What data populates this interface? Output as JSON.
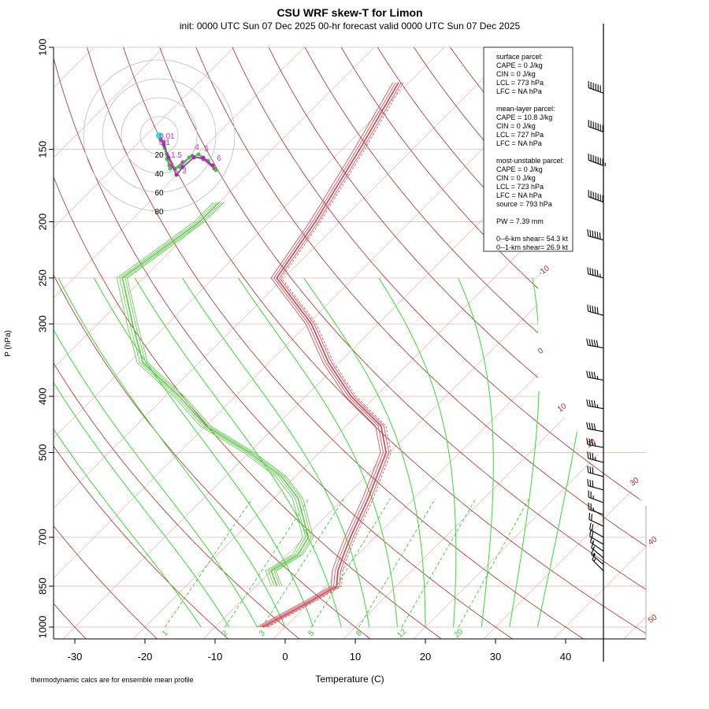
{
  "chart_data": {
    "type": "line",
    "title": "CSU WRF skew-T for Limon",
    "subtitle": "init: 0000 UTC Sun 07 Dec 2025     00-hr forecast valid 0000 UTC Sun 07 Dec 2025",
    "xlabel": "Temperature (C)",
    "ylabel": "P (hPa)",
    "footnote": "thermodynamic calcs are for ensemble mean profile",
    "x_ticks": [
      "-30",
      "-20",
      "-10",
      "0",
      "10",
      "20",
      "30",
      "40"
    ],
    "x_tick_values": [
      -30,
      -20,
      -10,
      0,
      10,
      20,
      30,
      40
    ],
    "y_ticks": [
      "100",
      "150",
      "200",
      "250",
      "300",
      "400",
      "500",
      "700",
      "850",
      "1000"
    ],
    "y_tick_values": [
      100,
      150,
      200,
      250,
      300,
      400,
      500,
      700,
      850,
      1000
    ],
    "xlim": [
      -33,
      52
    ],
    "ylim": [
      1000,
      100
    ],
    "dry_adiabat_labels": [
      "-10",
      "0",
      "10",
      "20",
      "30",
      "40",
      "50"
    ],
    "mixing_ratio_labels": [
      "1",
      "2",
      "3",
      "5",
      "8",
      "12",
      "20"
    ],
    "mixing_ratio_values": [
      1,
      2,
      3,
      5,
      8,
      12,
      20
    ],
    "series": [
      {
        "color": "#d0404c",
        "points": [
          [
            -3.2,
            1000
          ],
          [
            0.0,
            900
          ],
          [
            1.5,
            850
          ],
          [
            -0.5,
            800
          ],
          [
            -2.0,
            750
          ],
          [
            -3.5,
            700
          ],
          [
            -6.5,
            600
          ],
          [
            -10.5,
            500
          ],
          [
            -15.0,
            450
          ],
          [
            -23.5,
            400
          ],
          [
            -31.5,
            350
          ],
          [
            -39.5,
            300
          ],
          [
            -51.0,
            250
          ],
          [
            -53.5,
            200
          ],
          [
            -57.5,
            150
          ],
          [
            -61.5,
            115
          ]
        ]
      },
      {
        "color": "#5cc84a",
        "points": [
          [
            -7.0,
            850
          ],
          [
            -10.0,
            800
          ],
          [
            -8.5,
            750
          ],
          [
            -9.5,
            700
          ],
          [
            -16.5,
            600
          ],
          [
            -22.0,
            550
          ],
          [
            -30.0,
            500
          ],
          [
            -40.0,
            450
          ],
          [
            -48.0,
            400
          ],
          [
            -58.0,
            350
          ],
          [
            -65.0,
            300
          ],
          [
            -73.0,
            250
          ],
          [
            -70.0,
            200
          ],
          [
            -70.0,
            185
          ]
        ]
      }
    ],
    "hodograph": {
      "ring_labels": [
        "20",
        "40",
        "60",
        "80"
      ],
      "point_labels": [
        "0.01",
        "0.1",
        "1.5",
        "3",
        "4",
        "5",
        "6"
      ]
    },
    "parcel_info": {
      "surface": [
        "surface parcel:",
        "CAPE = 0 J/kg",
        "CIN = 0 J/kg",
        "LCL = 773 hPa",
        "LFC = NA hPa"
      ],
      "mean_layer": [
        "mean-layer parcel:",
        "CAPE = 10.8 J/kg",
        "CIN = 0 J/kg",
        "LCL = 727 hPa",
        "LFC = NA hPa"
      ],
      "most_unstable": [
        "most-unstable parcel:",
        "CAPE = 0 J/kg",
        "CIN = 0 J/kg",
        "LCL = 723 hPa",
        "LFC = NA hPa",
        "source = 793 hPa"
      ],
      "pw": "PW =  7.39 mm",
      "shear": [
        "0--6-km shear= 54.3 kt",
        "0--1-km shear= 26.9 kt"
      ]
    },
    "wind_barbs": [
      {
        "p": 120,
        "dir": 290,
        "spd": 60
      },
      {
        "p": 140,
        "dir": 290,
        "spd": 70
      },
      {
        "p": 160,
        "dir": 290,
        "spd": 75
      },
      {
        "p": 185,
        "dir": 290,
        "spd": 70
      },
      {
        "p": 215,
        "dir": 285,
        "spd": 60
      },
      {
        "p": 250,
        "dir": 285,
        "spd": 55
      },
      {
        "p": 290,
        "dir": 285,
        "spd": 50
      },
      {
        "p": 330,
        "dir": 280,
        "spd": 50
      },
      {
        "p": 375,
        "dir": 280,
        "spd": 45
      },
      {
        "p": 420,
        "dir": 280,
        "spd": 45
      },
      {
        "p": 460,
        "dir": 280,
        "spd": 40
      },
      {
        "p": 490,
        "dir": 280,
        "spd": 35
      },
      {
        "p": 520,
        "dir": 285,
        "spd": 35
      },
      {
        "p": 550,
        "dir": 285,
        "spd": 30
      },
      {
        "p": 580,
        "dir": 285,
        "spd": 30
      },
      {
        "p": 610,
        "dir": 290,
        "spd": 25
      },
      {
        "p": 640,
        "dir": 290,
        "spd": 25
      },
      {
        "p": 670,
        "dir": 295,
        "spd": 20
      },
      {
        "p": 700,
        "dir": 300,
        "spd": 20
      },
      {
        "p": 720,
        "dir": 300,
        "spd": 20
      },
      {
        "p": 740,
        "dir": 305,
        "spd": 15
      },
      {
        "p": 760,
        "dir": 310,
        "spd": 15
      },
      {
        "p": 780,
        "dir": 310,
        "spd": 15
      },
      {
        "p": 800,
        "dir": 315,
        "spd": 15
      }
    ],
    "colors": {
      "temperature": "#d0404c",
      "dewpoint": "#5cc84a",
      "dry_adiabat": "#a52a2a",
      "moist_adiabat": "#33dd33",
      "mixing_ratio": "#33cc33",
      "isotherm": "#e8b4b4",
      "hodo_magenta": "#cc33cc",
      "hodo_green": "#33cc33",
      "hodo_cyan": "#33dddd"
    }
  }
}
